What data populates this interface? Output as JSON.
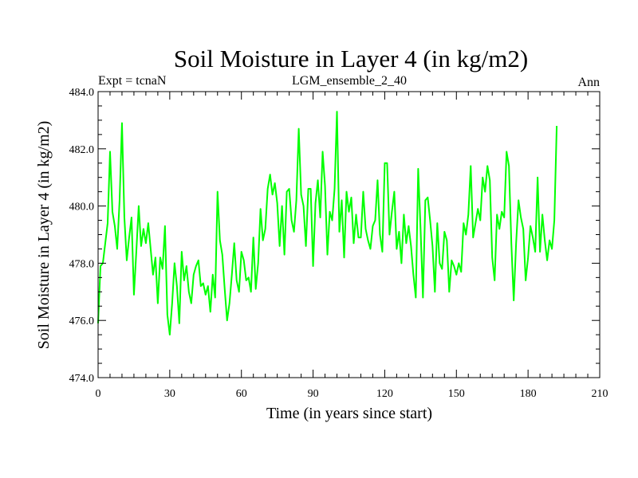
{
  "chart_data": {
    "type": "line",
    "title": "Soil Moisture in Layer 4 (in kg/m2)",
    "subtitle_left": "Expt = tcnaN",
    "subtitle_center": "LGM_ensemble_2_40",
    "subtitle_right": "Ann",
    "xlabel": "Time (in years since start)",
    "ylabel": "Soil Moisture in Layer 4 (in kg/m2)",
    "xlim": [
      0,
      210
    ],
    "ylim": [
      474,
      484
    ],
    "x_ticks": [
      0,
      30,
      60,
      90,
      120,
      150,
      180,
      210
    ],
    "x_tick_labels": [
      "0",
      "30",
      "60",
      "90",
      "120",
      "150",
      "180",
      "210"
    ],
    "y_ticks": [
      474,
      476,
      478,
      480,
      482,
      484
    ],
    "y_tick_labels": [
      "474.0",
      "476.0",
      "478.0",
      "480.0",
      "482.0",
      "484.0"
    ],
    "grid": false,
    "series": [
      {
        "name": "Soil Moisture in Layer 4",
        "color": "#00ff00",
        "x_start": 0,
        "x_step": 1,
        "values": [
          475.9,
          477.9,
          478.0,
          478.7,
          479.4,
          481.9,
          479.8,
          479.3,
          478.5,
          480.2,
          482.9,
          479.6,
          478.1,
          478.9,
          479.6,
          476.9,
          478.4,
          480.0,
          478.6,
          479.2,
          478.7,
          479.4,
          478.5,
          477.6,
          478.2,
          476.6,
          478.2,
          477.8,
          479.3,
          476.2,
          475.5,
          476.6,
          478.0,
          477.2,
          475.9,
          478.4,
          477.4,
          477.9,
          477.0,
          476.6,
          477.6,
          477.9,
          478.1,
          477.2,
          477.3,
          476.9,
          477.2,
          476.3,
          477.6,
          476.8,
          480.5,
          478.8,
          478.3,
          477.1,
          476.0,
          476.6,
          477.6,
          478.7,
          477.4,
          477.0,
          478.4,
          478.1,
          477.4,
          477.5,
          477.0,
          478.9,
          477.1,
          478.0,
          479.9,
          478.8,
          479.2,
          480.6,
          481.1,
          480.4,
          480.8,
          480.1,
          478.6,
          480.0,
          478.3,
          480.5,
          480.6,
          479.5,
          479.1,
          480.2,
          482.7,
          480.4,
          480.0,
          478.6,
          480.6,
          480.6,
          477.9,
          480.1,
          480.9,
          479.6,
          481.9,
          480.7,
          478.3,
          479.8,
          479.5,
          480.6,
          483.3,
          479.1,
          480.2,
          478.2,
          480.5,
          479.8,
          480.3,
          478.7,
          479.7,
          478.9,
          478.9,
          480.5,
          479.2,
          478.8,
          478.5,
          479.3,
          479.5,
          480.9,
          479.0,
          478.4,
          481.5,
          481.5,
          479.0,
          479.8,
          480.5,
          478.5,
          479.1,
          478.0,
          479.7,
          478.7,
          479.3,
          478.6,
          477.6,
          476.8,
          481.3,
          479.2,
          476.8,
          480.2,
          480.3,
          479.5,
          478.6,
          477.0,
          479.4,
          478.0,
          477.8,
          479.1,
          478.8,
          477.0,
          478.1,
          477.9,
          477.6,
          478.0,
          477.7,
          479.4,
          479.0,
          479.7,
          481.4,
          478.9,
          479.4,
          479.9,
          479.5,
          481.0,
          480.5,
          481.4,
          480.9,
          478.2,
          477.4,
          479.7,
          479.2,
          479.8,
          479.6,
          481.9,
          481.4,
          478.7,
          476.7,
          478.7,
          480.2,
          479.6,
          479.2,
          477.4,
          478.2,
          479.3,
          478.9,
          478.4,
          481.0,
          478.4,
          479.7,
          478.8,
          478.1,
          478.8,
          478.5,
          479.5,
          482.8
        ]
      }
    ]
  }
}
